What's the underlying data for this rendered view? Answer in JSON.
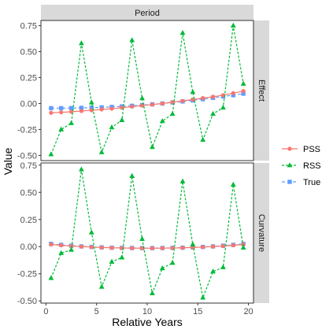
{
  "chart_data": {
    "type": "line",
    "strip_top": "Period",
    "xlabel": "Relative Years",
    "ylabel": "Value",
    "xlim": [
      -0.5,
      20.5
    ],
    "xticks": [
      0,
      5,
      10,
      15,
      20
    ],
    "yticks": [
      -0.5,
      -0.25,
      0.0,
      0.25,
      0.5,
      0.75
    ],
    "ytick_labels": [
      "-0.50",
      "-0.25",
      "0.00",
      "0.25",
      "0.50",
      "0.75"
    ],
    "x": [
      0.5,
      1.5,
      2.5,
      3.5,
      4.5,
      5.5,
      6.5,
      7.5,
      8.5,
      9.5,
      10.5,
      11.5,
      12.5,
      13.5,
      14.5,
      15.5,
      16.5,
      17.5,
      18.5,
      19.5
    ],
    "legend": {
      "position": "right",
      "entries": [
        "PSS",
        "RSS",
        "True"
      ]
    },
    "colors": {
      "PSS": "#f8766d",
      "RSS": "#00ba38",
      "True": "#619cff"
    },
    "panels": [
      {
        "strip_right": "Effect",
        "ylim": [
          -0.55,
          0.8
        ],
        "series": [
          {
            "name": "PSS",
            "values": [
              -0.09,
              -0.085,
              -0.08,
              -0.072,
              -0.065,
              -0.057,
              -0.05,
              -0.04,
              -0.03,
              -0.02,
              -0.01,
              0.0,
              0.013,
              0.025,
              0.038,
              0.052,
              0.065,
              0.08,
              0.1,
              0.12
            ]
          },
          {
            "name": "RSS",
            "values": [
              -0.49,
              -0.25,
              -0.19,
              0.58,
              0.01,
              -0.47,
              -0.23,
              -0.16,
              0.61,
              0.05,
              -0.42,
              -0.17,
              -0.1,
              0.68,
              0.11,
              -0.35,
              -0.1,
              -0.04,
              0.75,
              0.19
            ]
          },
          {
            "name": "True",
            "values": [
              -0.045,
              -0.045,
              -0.044,
              -0.042,
              -0.04,
              -0.037,
              -0.033,
              -0.028,
              -0.022,
              -0.015,
              -0.008,
              0.0,
              0.01,
              0.02,
              0.03,
              0.042,
              0.055,
              0.068,
              0.08,
              0.095
            ]
          }
        ]
      },
      {
        "strip_right": "Curvature",
        "ylim": [
          -0.52,
          0.77
        ],
        "series": [
          {
            "name": "PSS",
            "values": [
              0.02,
              0.012,
              0.005,
              0.0,
              -0.004,
              -0.008,
              -0.011,
              -0.013,
              -0.014,
              -0.015,
              -0.015,
              -0.014,
              -0.013,
              -0.011,
              -0.008,
              -0.004,
              0.0,
              0.005,
              0.012,
              0.02
            ]
          },
          {
            "name": "RSS",
            "values": [
              -0.29,
              -0.06,
              -0.03,
              0.71,
              0.13,
              -0.37,
              -0.14,
              -0.1,
              0.65,
              0.07,
              -0.43,
              -0.2,
              -0.15,
              0.6,
              0.02,
              -0.47,
              -0.23,
              -0.19,
              0.57,
              -0.01
            ]
          },
          {
            "name": "True",
            "values": [
              0.025,
              0.016,
              0.008,
              0.002,
              -0.003,
              -0.007,
              -0.01,
              -0.012,
              -0.013,
              -0.014,
              -0.014,
              -0.013,
              -0.012,
              -0.01,
              -0.007,
              -0.003,
              0.002,
              0.008,
              0.016,
              0.025
            ]
          }
        ]
      }
    ]
  }
}
